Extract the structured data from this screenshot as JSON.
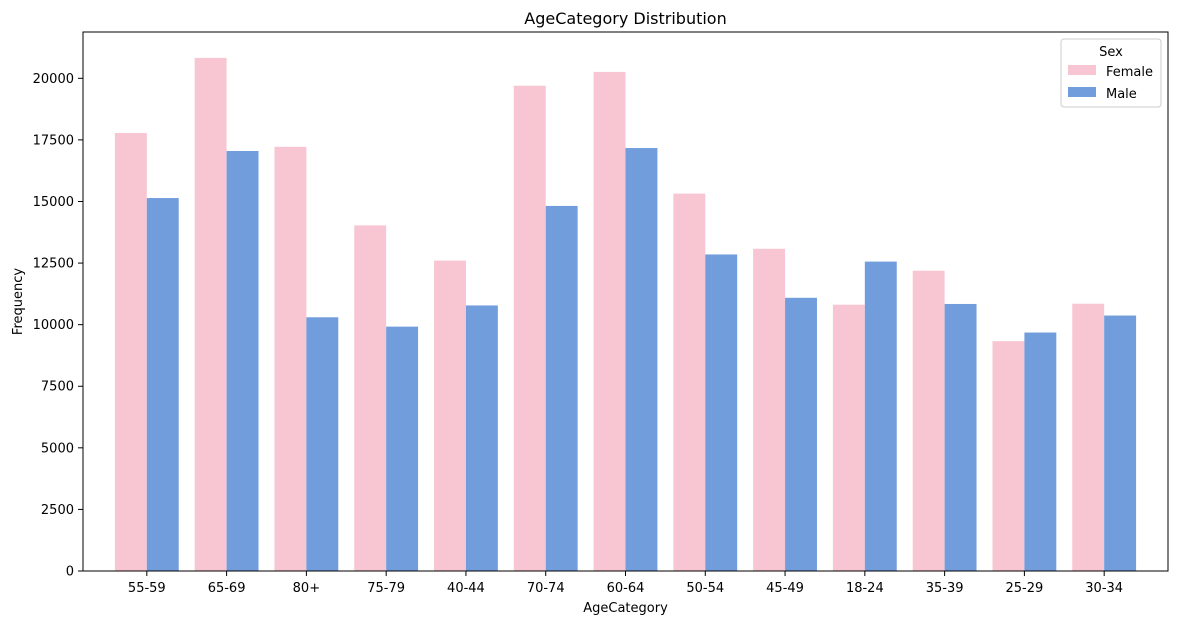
{
  "chart_data": {
    "type": "bar",
    "title": "AgeCategory Distribution",
    "xlabel": "AgeCategory",
    "ylabel": "Frequency",
    "categories": [
      "55-59",
      "65-69",
      "80+",
      "75-79",
      "40-44",
      "70-74",
      "60-64",
      "50-54",
      "45-49",
      "18-24",
      "35-39",
      "25-29",
      "30-34"
    ],
    "series": [
      {
        "name": "Female",
        "color": "#f8c6d2",
        "values": [
          17780,
          20830,
          17220,
          14030,
          12600,
          19700,
          20260,
          15320,
          13080,
          10810,
          12190,
          9330,
          10850
        ]
      },
      {
        "name": "Male",
        "color": "#729ddc",
        "values": [
          15140,
          17050,
          10300,
          9920,
          10780,
          14820,
          17170,
          12850,
          11090,
          12560,
          10840,
          9680,
          10370
        ]
      }
    ],
    "ylim": [
      0,
      21880
    ],
    "yticks": [
      0,
      2500,
      5000,
      7500,
      10000,
      12500,
      15000,
      17500,
      20000
    ],
    "grid": false,
    "legend": {
      "title": "Sex",
      "position": "top-right"
    }
  }
}
